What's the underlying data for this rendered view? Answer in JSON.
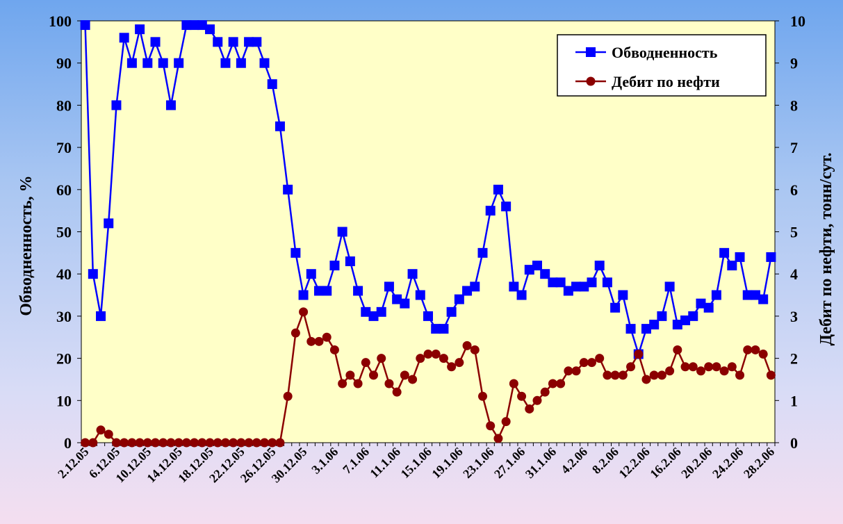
{
  "chart_data": {
    "type": "line",
    "ylabel_left": "Обводненность, %",
    "ylabel_right": "Дебит по нефти, тонн/сут.",
    "ylim_left": [
      0,
      100
    ],
    "ylim_right": [
      0,
      10
    ],
    "yticks_left": [
      "0",
      "10",
      "20",
      "30",
      "40",
      "50",
      "60",
      "70",
      "80",
      "90",
      "100"
    ],
    "yticks_right": [
      "0",
      "1",
      "2",
      "3",
      "4",
      "5",
      "6",
      "7",
      "8",
      "9",
      "10"
    ],
    "x_tick_labels": [
      "2.12.05",
      "6.12.05",
      "10.12.05",
      "14.12.05",
      "18.12.05",
      "22.12.05",
      "26.12.05",
      "30.12.05",
      "3.1.06",
      "7.1.06",
      "11.1.06",
      "15.1.06",
      "19.1.06",
      "23.1.06",
      "27.1.06",
      "31.1.06",
      "4.2.06",
      "8.2.06",
      "12.2.06",
      "16.2.06",
      "20.2.06",
      "24.2.06",
      "28.2.06"
    ],
    "grid": false,
    "legend_position": "top-right",
    "background_color": "#ffffc8",
    "series": [
      {
        "name": "Обводненность",
        "axis": "left",
        "color": "#0000ff",
        "marker": "square",
        "values": [
          99,
          40,
          30,
          52,
          80,
          96,
          90,
          98,
          90,
          95,
          90,
          80,
          90,
          99,
          99,
          99,
          98,
          95,
          90,
          95,
          90,
          95,
          95,
          90,
          85,
          75,
          60,
          45,
          35,
          40,
          36,
          36,
          42,
          50,
          43,
          36,
          31,
          30,
          31,
          37,
          34,
          33,
          40,
          35,
          30,
          27,
          27,
          31,
          34,
          36,
          37,
          45,
          55,
          60,
          56,
          37,
          35,
          41,
          42,
          40,
          38,
          38,
          36,
          37,
          37,
          38,
          42,
          38,
          32,
          35,
          27,
          21,
          27,
          28,
          30,
          37,
          28,
          29,
          30,
          33,
          32,
          35,
          45,
          42,
          44,
          35,
          35,
          34,
          44
        ]
      },
      {
        "name": "Дебит по нефти",
        "axis": "right",
        "color": "#8b0000",
        "marker": "circle",
        "values": [
          0,
          0,
          0.3,
          0.2,
          0,
          0,
          0,
          0,
          0,
          0,
          0,
          0,
          0,
          0,
          0,
          0,
          0,
          0,
          0,
          0,
          0,
          0,
          0,
          0,
          0,
          0,
          1.1,
          2.6,
          3.1,
          2.4,
          2.4,
          2.5,
          2.2,
          1.4,
          1.6,
          1.4,
          1.9,
          1.6,
          2.0,
          1.4,
          1.2,
          1.6,
          1.5,
          2.0,
          2.1,
          2.1,
          2.0,
          1.8,
          1.9,
          2.3,
          2.2,
          1.1,
          0.4,
          0.1,
          0.5,
          1.4,
          1.1,
          0.8,
          1.0,
          1.2,
          1.4,
          1.4,
          1.7,
          1.7,
          1.9,
          1.9,
          2.0,
          1.6,
          1.6,
          1.6,
          1.8,
          2.1,
          1.5,
          1.6,
          1.6,
          1.7,
          2.2,
          1.8,
          1.8,
          1.7,
          1.8,
          1.8,
          1.7,
          1.8,
          1.6,
          2.2,
          2.2,
          2.1,
          1.6
        ]
      }
    ]
  }
}
